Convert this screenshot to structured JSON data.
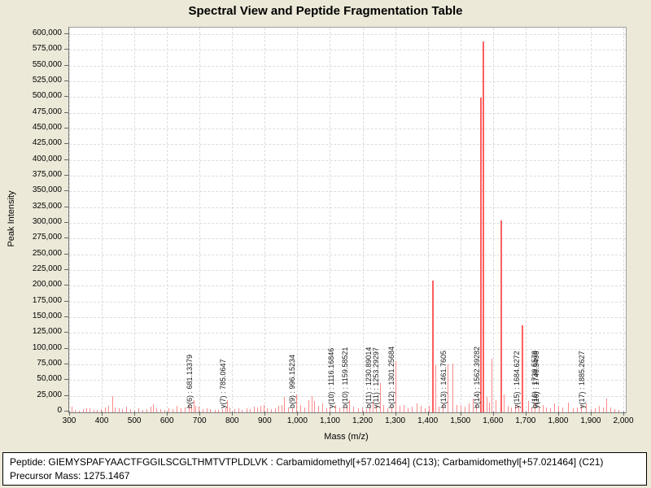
{
  "title": "Spectral View and Peptide Fragmentation Table",
  "chart_data": {
    "type": "bar",
    "title": "Spectral View and Peptide Fragmentation Table",
    "xlabel": "Mass (m/z)",
    "ylabel": "Peak Intensity",
    "xlim": [
      300,
      2000
    ],
    "ylim": [
      0,
      600000
    ],
    "x_tick_start": 300,
    "x_tick_step": 100,
    "y_tick_step": 25000,
    "grid": true,
    "x_ticks": [
      "300",
      "400",
      "500",
      "600",
      "700",
      "800",
      "900",
      "1,000",
      "1,100",
      "1,200",
      "1,300",
      "1,400",
      "1,500",
      "1,600",
      "1,700",
      "1,800",
      "1,900",
      "2,000"
    ],
    "y_ticks": [
      "0",
      "25,000",
      "50,000",
      "75,000",
      "100,000",
      "125,000",
      "150,000",
      "175,000",
      "200,000",
      "225,000",
      "250,000",
      "275,000",
      "300,000",
      "325,000",
      "350,000",
      "375,000",
      "400,000",
      "425,000",
      "450,000",
      "475,000",
      "500,000",
      "525,000",
      "550,000",
      "575,000",
      "600,000"
    ],
    "peaks": [
      [
        307,
        9000
      ],
      [
        318,
        4000
      ],
      [
        330,
        3000
      ],
      [
        342,
        5000
      ],
      [
        352,
        7000
      ],
      [
        362,
        6000
      ],
      [
        374,
        4000
      ],
      [
        386,
        3500
      ],
      [
        398,
        5000
      ],
      [
        410,
        8000
      ],
      [
        420,
        10000
      ],
      [
        432,
        26000
      ],
      [
        441,
        8000
      ],
      [
        452,
        7000
      ],
      [
        463,
        5000
      ],
      [
        475,
        9000
      ],
      [
        487,
        5500
      ],
      [
        499,
        4000
      ],
      [
        512,
        6000
      ],
      [
        524,
        4500
      ],
      [
        537,
        5000
      ],
      [
        549,
        9000
      ],
      [
        558,
        13000
      ],
      [
        568,
        6500
      ],
      [
        579,
        5000
      ],
      [
        591,
        4000
      ],
      [
        604,
        6000
      ],
      [
        617,
        5000
      ],
      [
        629,
        10000
      ],
      [
        641,
        6000
      ],
      [
        654,
        7500
      ],
      [
        667,
        12000
      ],
      [
        675,
        8000
      ],
      [
        681.13,
        20000
      ],
      [
        688,
        10000
      ],
      [
        696,
        9000
      ],
      [
        709,
        5000
      ],
      [
        721,
        6500
      ],
      [
        733,
        5000
      ],
      [
        746,
        4000
      ],
      [
        758,
        3500
      ],
      [
        770,
        5000
      ],
      [
        779,
        6000
      ],
      [
        785.06,
        19000
      ],
      [
        793,
        8000
      ],
      [
        806,
        5000
      ],
      [
        818,
        6500
      ],
      [
        830,
        4000
      ],
      [
        843,
        7000
      ],
      [
        855,
        5000
      ],
      [
        866,
        9000
      ],
      [
        876,
        8000
      ],
      [
        886,
        11000
      ],
      [
        896,
        12000
      ],
      [
        907,
        6000
      ],
      [
        919,
        5000
      ],
      [
        931,
        7000
      ],
      [
        941,
        10000
      ],
      [
        952,
        12000
      ],
      [
        960,
        24000
      ],
      [
        971,
        8000
      ],
      [
        983,
        6000
      ],
      [
        996.15,
        28000
      ],
      [
        1008,
        12000
      ],
      [
        1021,
        8000
      ],
      [
        1033,
        20000
      ],
      [
        1045,
        26000
      ],
      [
        1052,
        18000
      ],
      [
        1064,
        10000
      ],
      [
        1076,
        14000
      ],
      [
        1088,
        7000
      ],
      [
        1100,
        8000
      ],
      [
        1116.17,
        12000
      ],
      [
        1128,
        8000
      ],
      [
        1141,
        6000
      ],
      [
        1152,
        9000
      ],
      [
        1159.59,
        20000
      ],
      [
        1172,
        9000
      ],
      [
        1185,
        6000
      ],
      [
        1198,
        7500
      ],
      [
        1211,
        5000
      ],
      [
        1222,
        8000
      ],
      [
        1230.89,
        17000
      ],
      [
        1242,
        10000
      ],
      [
        1253.29,
        47000
      ],
      [
        1264,
        12000
      ],
      [
        1276,
        7000
      ],
      [
        1289,
        9000
      ],
      [
        1301.26,
        81000
      ],
      [
        1313,
        10000
      ],
      [
        1326,
        12000
      ],
      [
        1339,
        7000
      ],
      [
        1352,
        9000
      ],
      [
        1366,
        14000
      ],
      [
        1379,
        10000
      ],
      [
        1391,
        6000
      ],
      [
        1403,
        10000
      ],
      [
        1416,
        210000
      ],
      [
        1423,
        75000
      ],
      [
        1434,
        9000
      ],
      [
        1447,
        11000
      ],
      [
        1461.76,
        76000
      ],
      [
        1476,
        78000
      ],
      [
        1488,
        12000
      ],
      [
        1500,
        12000
      ],
      [
        1513,
        9000
      ],
      [
        1526,
        14000
      ],
      [
        1538,
        22000
      ],
      [
        1549,
        12000
      ],
      [
        1562.39,
        500000
      ],
      [
        1570,
        590000
      ],
      [
        1580,
        25000
      ],
      [
        1588,
        15000
      ],
      [
        1596,
        85000
      ],
      [
        1608,
        20000
      ],
      [
        1626,
        305000
      ],
      [
        1634,
        28000
      ],
      [
        1645,
        10000
      ],
      [
        1656,
        8000
      ],
      [
        1668,
        12000
      ],
      [
        1679,
        10000
      ],
      [
        1691,
        138000
      ],
      [
        1708,
        18000
      ],
      [
        1718,
        8000
      ],
      [
        1729,
        15000
      ],
      [
        1740,
        8000
      ],
      [
        1752,
        12000
      ],
      [
        1763,
        8000
      ],
      [
        1775,
        6000
      ],
      [
        1788,
        14000
      ],
      [
        1800,
        10000
      ],
      [
        1812,
        8000
      ],
      [
        1830,
        15000
      ],
      [
        1845,
        6000
      ],
      [
        1858,
        8000
      ],
      [
        1871,
        10000
      ],
      [
        1885.26,
        14000
      ],
      [
        1899,
        5000
      ],
      [
        1912,
        6000
      ],
      [
        1925,
        10000
      ],
      [
        1938,
        8000
      ],
      [
        1948,
        22000
      ],
      [
        1960,
        8000
      ],
      [
        1972,
        5000
      ],
      [
        1986,
        4000
      ]
    ],
    "annotations": [
      {
        "label": "b(6) : 681.13379",
        "mz": 681.13379
      },
      {
        "label": "y(7) : 785.0647",
        "mz": 785.0647
      },
      {
        "label": "b(9) : 996.15234",
        "mz": 996.15234
      },
      {
        "label": "y(10) : 1116.16846",
        "mz": 1116.16846
      },
      {
        "label": "b(10) : 1159.58521",
        "mz": 1159.58521
      },
      {
        "label": "b(11) : 1230.89014",
        "mz": 1230.89014
      },
      {
        "label": "y(11) : 1253.29297",
        "mz": 1253.29297
      },
      {
        "label": "b(12) : 1301.25684",
        "mz": 1301.25684
      },
      {
        "label": "b(13) : 1461.7605",
        "mz": 1461.7605
      },
      {
        "label": "b(14) : 1562.39282",
        "mz": 1562.39282
      },
      {
        "label": "y(15) : 1684.6272",
        "mz": 1684.6272
      },
      {
        "label": "b(16) : 1739.5578",
        "mz": 1739.5578
      },
      {
        "label": "y(16) : 1746.5498",
        "mz": 1746.5498
      },
      {
        "label": "y(17) : 1885.2627",
        "mz": 1885.2627
      }
    ]
  },
  "footer": {
    "peptide": "Peptide: GIEMYSPAFYAACTFGGILSCGLTHMTVTPLDLVK : Carbamidomethyl[+57.021464] (C13); Carbamidomethyl[+57.021464] (C21)",
    "precursor": "Precursor Mass: 1275.1467"
  },
  "colors": {
    "background": "#ece9d8",
    "plot_background": "#ffffff",
    "grid": "#dcdcdc",
    "peak": "#ff8a8a",
    "peak_major": "#ff5f5f",
    "axis": "#777777",
    "text": "#000000"
  }
}
